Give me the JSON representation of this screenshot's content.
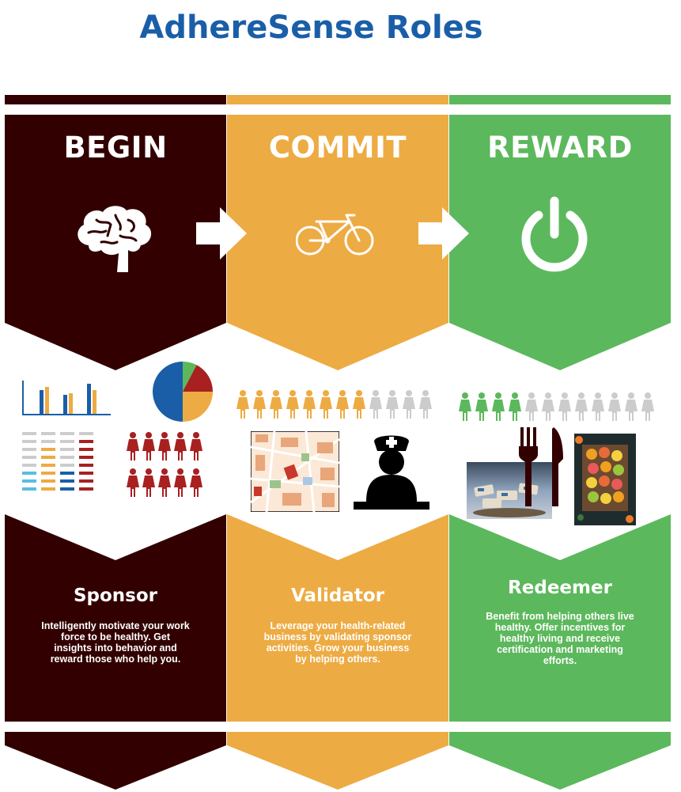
{
  "title": "AdhereSense Roles",
  "colors": {
    "title": "#1a5ea8",
    "begin": "#320000",
    "commit": "#edab43",
    "reward": "#5cb85c",
    "chart_blue": "#1a5ea8",
    "chart_orange": "#edab43",
    "chart_red": "#a82020",
    "chart_green": "#5cb85c",
    "inactive_gray": "#cccccc"
  },
  "columns": [
    {
      "heading": "BEGIN",
      "icon": "brain-icon",
      "illustrations": [
        "bar-chart-icon",
        "pie-chart-icon",
        "table-grid-icon",
        "people-group-icon"
      ],
      "role": "Sponsor",
      "description": [
        "Intelligently motivate your work",
        "force to be healthy.  Get",
        "insights into behavior and",
        "reward those who help you."
      ]
    },
    {
      "heading": "COMMIT",
      "icon": "bicycle-icon",
      "illustrations": [
        "people-row-icon",
        "city-map-image",
        "nurse-icon"
      ],
      "role": "Validator",
      "description": [
        "Leverage your health-related",
        "business by validating sponsor",
        "activities.  Grow your business",
        "by helping others."
      ]
    },
    {
      "heading": "REWARD",
      "icon": "power-icon",
      "illustrations": [
        "people-row-icon",
        "fork-knife-icon",
        "snack-photo",
        "citrus-photo"
      ],
      "role": "Redeemer",
      "description": [
        "Benefit from helping others live",
        "healthy.  Offer incentives for",
        "healthy living and receive",
        "certification and marketing",
        "efforts."
      ]
    }
  ]
}
